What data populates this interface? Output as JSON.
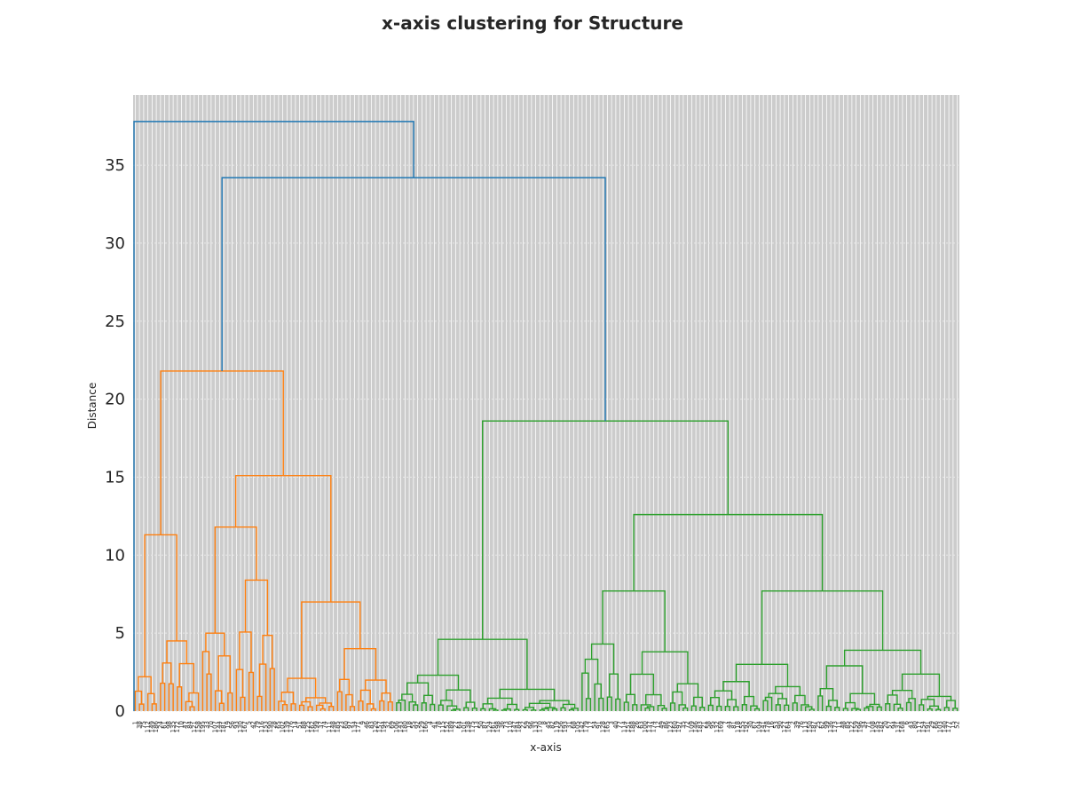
{
  "chart_data": {
    "type": "dendrogram",
    "title": "x-axis clustering for Structure",
    "xlabel": "x-axis",
    "ylabel": "Distance",
    "ylim": [
      0,
      39.5
    ],
    "yticks": [
      "0",
      "5",
      "10",
      "15",
      "20",
      "25",
      "30",
      "35"
    ],
    "grid": true,
    "leaf_count": 196,
    "cluster_colors": {
      "above_threshold": "#1f77b4",
      "cluster_1": "#ff7f0e",
      "cluster_2": "#2ca02c"
    },
    "merge_heights": {
      "root": 37.8,
      "second": 34.2,
      "orange_cluster_root": 21.8,
      "green_cluster_root": 18.6,
      "orange_sub_left": 11.3,
      "orange_sub_right": 15.1,
      "orange_sub_a": 11.8,
      "orange_sub_b": 7.0,
      "green_sub_left": 4.6,
      "green_sub_right": 12.6,
      "green_sub_c": 7.7,
      "green_sub_d": 7.7
    }
  }
}
